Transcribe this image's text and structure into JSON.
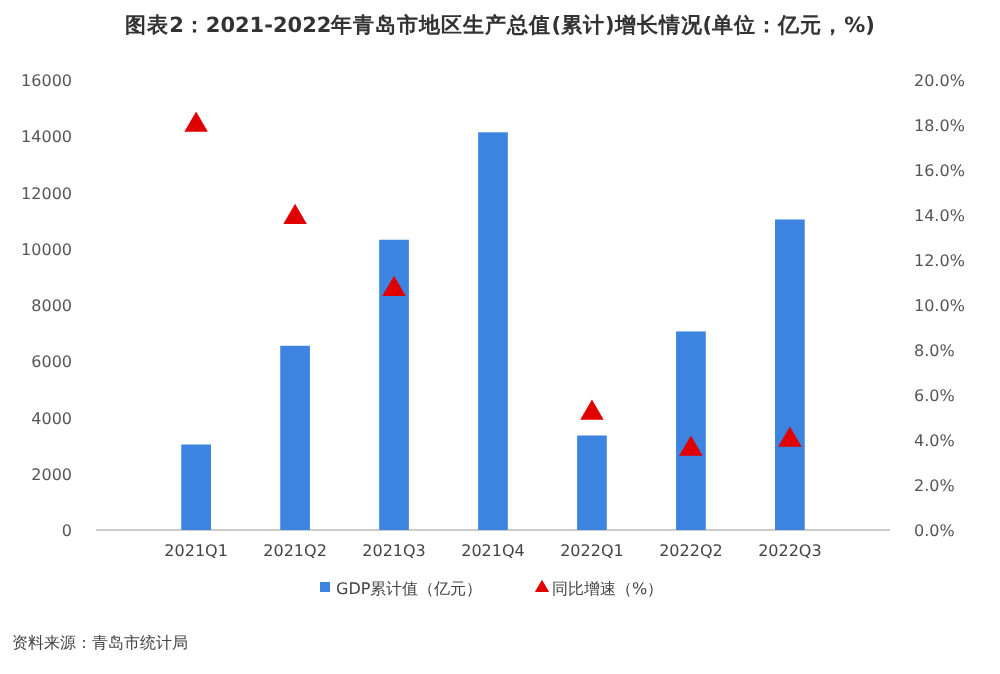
{
  "chart_data": {
    "type": "bar",
    "title": "图表2：2021-2022年青岛市地区生产总值(累计)增长情况(单位：亿元，%)",
    "categories": [
      "2021Q1",
      "2021Q2",
      "2021Q3",
      "2021Q4",
      "2022Q1",
      "2022Q2",
      "2022Q3"
    ],
    "series": [
      {
        "name": "GDP累计值（亿元）",
        "color": "#3c84e0",
        "values": [
          3040,
          6550,
          10320,
          14140,
          3360,
          7060,
          11040
        ]
      },
      {
        "name": "同比增速（%）",
        "color": "#e00000",
        "type": "scatter",
        "axis": "y2",
        "marker": "triangle",
        "values": [
          18.0,
          13.9,
          10.7,
          null,
          5.2,
          3.6,
          4.0
        ]
      }
    ],
    "ylim": [
      0,
      16000
    ],
    "yticks": [
      0,
      2000,
      4000,
      6000,
      8000,
      10000,
      12000,
      14000,
      16000
    ],
    "y2lim": [
      0,
      20
    ],
    "y2ticks": [
      {
        "value": 0,
        "label": "0.0%"
      },
      {
        "value": 2,
        "label": "2.0%"
      },
      {
        "value": 4,
        "label": "4.0%"
      },
      {
        "value": 6,
        "label": "6.0%"
      },
      {
        "value": 8,
        "label": "8.0%"
      },
      {
        "value": 10,
        "label": "10.0%"
      },
      {
        "value": 12,
        "label": "12.0%"
      },
      {
        "value": 14,
        "label": "14.0%"
      },
      {
        "value": 16,
        "label": "16.0%"
      },
      {
        "value": 18,
        "label": "18.0%"
      },
      {
        "value": 20,
        "label": "20.0%"
      }
    ],
    "grid": false,
    "legend": "bottom",
    "annotations": [
      "资料来源：青岛市统计局"
    ]
  }
}
